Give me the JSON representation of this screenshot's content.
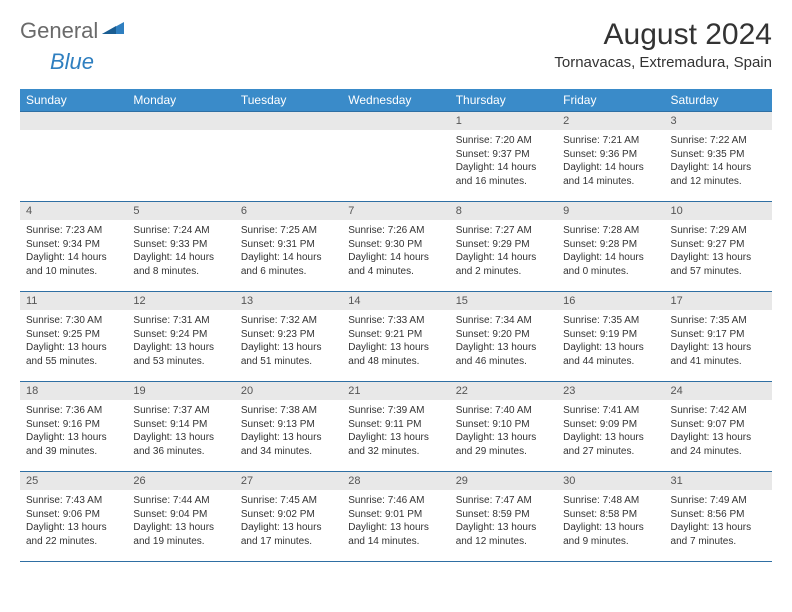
{
  "brand": {
    "text1": "General",
    "text2": "Blue"
  },
  "title": "August 2024",
  "location": "Tornavacas, Extremadura, Spain",
  "colors": {
    "header_bg": "#3a8bc9",
    "row_border": "#2f6fa3",
    "daynum_bg": "#e8e8e8",
    "logo_gray": "#6a6a6a",
    "logo_blue": "#2f7fc0"
  },
  "weekdays": [
    "Sunday",
    "Monday",
    "Tuesday",
    "Wednesday",
    "Thursday",
    "Friday",
    "Saturday"
  ],
  "weeks": [
    [
      {
        "blank": true
      },
      {
        "blank": true
      },
      {
        "blank": true
      },
      {
        "blank": true
      },
      {
        "num": "1",
        "sunrise": "Sunrise: 7:20 AM",
        "sunset": "Sunset: 9:37 PM",
        "daylight": "Daylight: 14 hours and 16 minutes."
      },
      {
        "num": "2",
        "sunrise": "Sunrise: 7:21 AM",
        "sunset": "Sunset: 9:36 PM",
        "daylight": "Daylight: 14 hours and 14 minutes."
      },
      {
        "num": "3",
        "sunrise": "Sunrise: 7:22 AM",
        "sunset": "Sunset: 9:35 PM",
        "daylight": "Daylight: 14 hours and 12 minutes."
      }
    ],
    [
      {
        "num": "4",
        "sunrise": "Sunrise: 7:23 AM",
        "sunset": "Sunset: 9:34 PM",
        "daylight": "Daylight: 14 hours and 10 minutes."
      },
      {
        "num": "5",
        "sunrise": "Sunrise: 7:24 AM",
        "sunset": "Sunset: 9:33 PM",
        "daylight": "Daylight: 14 hours and 8 minutes."
      },
      {
        "num": "6",
        "sunrise": "Sunrise: 7:25 AM",
        "sunset": "Sunset: 9:31 PM",
        "daylight": "Daylight: 14 hours and 6 minutes."
      },
      {
        "num": "7",
        "sunrise": "Sunrise: 7:26 AM",
        "sunset": "Sunset: 9:30 PM",
        "daylight": "Daylight: 14 hours and 4 minutes."
      },
      {
        "num": "8",
        "sunrise": "Sunrise: 7:27 AM",
        "sunset": "Sunset: 9:29 PM",
        "daylight": "Daylight: 14 hours and 2 minutes."
      },
      {
        "num": "9",
        "sunrise": "Sunrise: 7:28 AM",
        "sunset": "Sunset: 9:28 PM",
        "daylight": "Daylight: 14 hours and 0 minutes."
      },
      {
        "num": "10",
        "sunrise": "Sunrise: 7:29 AM",
        "sunset": "Sunset: 9:27 PM",
        "daylight": "Daylight: 13 hours and 57 minutes."
      }
    ],
    [
      {
        "num": "11",
        "sunrise": "Sunrise: 7:30 AM",
        "sunset": "Sunset: 9:25 PM",
        "daylight": "Daylight: 13 hours and 55 minutes."
      },
      {
        "num": "12",
        "sunrise": "Sunrise: 7:31 AM",
        "sunset": "Sunset: 9:24 PM",
        "daylight": "Daylight: 13 hours and 53 minutes."
      },
      {
        "num": "13",
        "sunrise": "Sunrise: 7:32 AM",
        "sunset": "Sunset: 9:23 PM",
        "daylight": "Daylight: 13 hours and 51 minutes."
      },
      {
        "num": "14",
        "sunrise": "Sunrise: 7:33 AM",
        "sunset": "Sunset: 9:21 PM",
        "daylight": "Daylight: 13 hours and 48 minutes."
      },
      {
        "num": "15",
        "sunrise": "Sunrise: 7:34 AM",
        "sunset": "Sunset: 9:20 PM",
        "daylight": "Daylight: 13 hours and 46 minutes."
      },
      {
        "num": "16",
        "sunrise": "Sunrise: 7:35 AM",
        "sunset": "Sunset: 9:19 PM",
        "daylight": "Daylight: 13 hours and 44 minutes."
      },
      {
        "num": "17",
        "sunrise": "Sunrise: 7:35 AM",
        "sunset": "Sunset: 9:17 PM",
        "daylight": "Daylight: 13 hours and 41 minutes."
      }
    ],
    [
      {
        "num": "18",
        "sunrise": "Sunrise: 7:36 AM",
        "sunset": "Sunset: 9:16 PM",
        "daylight": "Daylight: 13 hours and 39 minutes."
      },
      {
        "num": "19",
        "sunrise": "Sunrise: 7:37 AM",
        "sunset": "Sunset: 9:14 PM",
        "daylight": "Daylight: 13 hours and 36 minutes."
      },
      {
        "num": "20",
        "sunrise": "Sunrise: 7:38 AM",
        "sunset": "Sunset: 9:13 PM",
        "daylight": "Daylight: 13 hours and 34 minutes."
      },
      {
        "num": "21",
        "sunrise": "Sunrise: 7:39 AM",
        "sunset": "Sunset: 9:11 PM",
        "daylight": "Daylight: 13 hours and 32 minutes."
      },
      {
        "num": "22",
        "sunrise": "Sunrise: 7:40 AM",
        "sunset": "Sunset: 9:10 PM",
        "daylight": "Daylight: 13 hours and 29 minutes."
      },
      {
        "num": "23",
        "sunrise": "Sunrise: 7:41 AM",
        "sunset": "Sunset: 9:09 PM",
        "daylight": "Daylight: 13 hours and 27 minutes."
      },
      {
        "num": "24",
        "sunrise": "Sunrise: 7:42 AM",
        "sunset": "Sunset: 9:07 PM",
        "daylight": "Daylight: 13 hours and 24 minutes."
      }
    ],
    [
      {
        "num": "25",
        "sunrise": "Sunrise: 7:43 AM",
        "sunset": "Sunset: 9:06 PM",
        "daylight": "Daylight: 13 hours and 22 minutes."
      },
      {
        "num": "26",
        "sunrise": "Sunrise: 7:44 AM",
        "sunset": "Sunset: 9:04 PM",
        "daylight": "Daylight: 13 hours and 19 minutes."
      },
      {
        "num": "27",
        "sunrise": "Sunrise: 7:45 AM",
        "sunset": "Sunset: 9:02 PM",
        "daylight": "Daylight: 13 hours and 17 minutes."
      },
      {
        "num": "28",
        "sunrise": "Sunrise: 7:46 AM",
        "sunset": "Sunset: 9:01 PM",
        "daylight": "Daylight: 13 hours and 14 minutes."
      },
      {
        "num": "29",
        "sunrise": "Sunrise: 7:47 AM",
        "sunset": "Sunset: 8:59 PM",
        "daylight": "Daylight: 13 hours and 12 minutes."
      },
      {
        "num": "30",
        "sunrise": "Sunrise: 7:48 AM",
        "sunset": "Sunset: 8:58 PM",
        "daylight": "Daylight: 13 hours and 9 minutes."
      },
      {
        "num": "31",
        "sunrise": "Sunrise: 7:49 AM",
        "sunset": "Sunset: 8:56 PM",
        "daylight": "Daylight: 13 hours and 7 minutes."
      }
    ]
  ]
}
